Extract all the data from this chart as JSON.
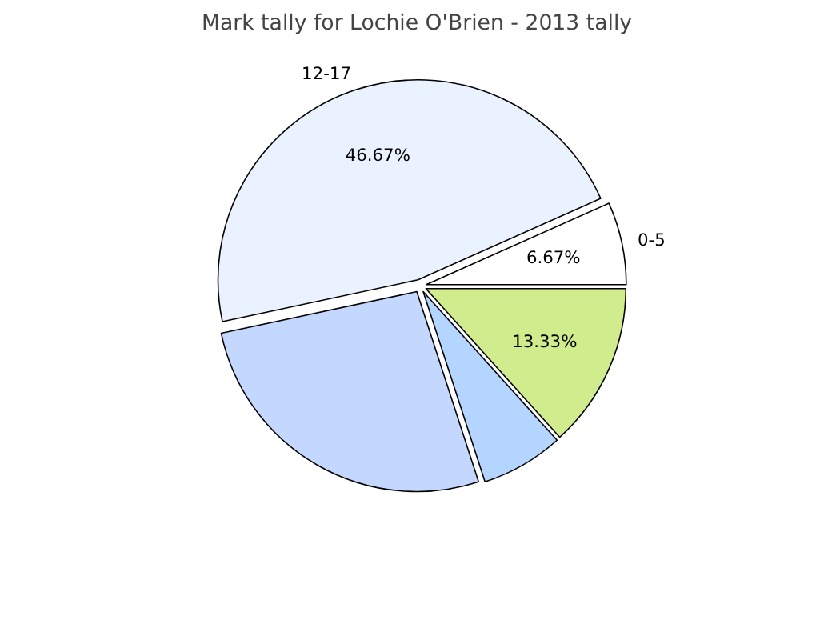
{
  "chart_data": {
    "type": "pie",
    "title": "Mark tally for Lochie O'Brien - 2013 tally",
    "categories": [
      null,
      null,
      null,
      "12-17",
      "0-5"
    ],
    "values": [
      13.33,
      6.67,
      26.66,
      46.67,
      6.67
    ],
    "colors": [
      "#d0ec8c",
      "#b3d5ff",
      "#c4d8ff",
      "#eaf1ff",
      "#ffffff"
    ],
    "value_labels": [
      "13.33%",
      null,
      null,
      "46.67%",
      "6.67%"
    ]
  }
}
